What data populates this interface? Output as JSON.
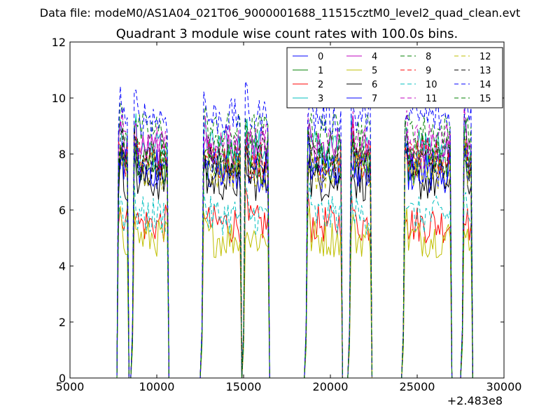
{
  "figure": {
    "suptitle": "Data file: modeM0/AS1A04_021T06_9000001688_11515cztM0_level2_quad_clean.evt"
  },
  "chart_data": {
    "type": "line",
    "title": "Quadrant 3 module wise count rates with 100.0s bins.",
    "xlabel": "",
    "ylabel": "",
    "x_offset_label": "+2.483e8",
    "xlim": [
      5000,
      30000
    ],
    "ylim": [
      0,
      12
    ],
    "xticks": [
      5000,
      10000,
      15000,
      20000,
      25000,
      30000
    ],
    "yticks": [
      0,
      2,
      4,
      6,
      8,
      10,
      12
    ],
    "grid": false,
    "legend_position": "top-right",
    "legend_ncol": 4,
    "active_segments": [
      [
        7800,
        8300
      ],
      [
        8600,
        10600
      ],
      [
        12600,
        14800
      ],
      [
        15000,
        16400
      ],
      [
        18600,
        20600
      ],
      [
        21100,
        22300
      ],
      [
        24200,
        26900
      ],
      [
        27600,
        28100
      ]
    ],
    "series": [
      {
        "name": "0",
        "color": "#0000ff",
        "dash": "solid",
        "level": 7.3
      },
      {
        "name": "1",
        "color": "#008000",
        "dash": "solid",
        "level": 7.6
      },
      {
        "name": "2",
        "color": "#ff0000",
        "dash": "solid",
        "level": 5.5
      },
      {
        "name": "3",
        "color": "#00bfbf",
        "dash": "solid",
        "level": 8.2
      },
      {
        "name": "4",
        "color": "#bf00bf",
        "dash": "solid",
        "level": 8.1
      },
      {
        "name": "5",
        "color": "#bfbf00",
        "dash": "solid",
        "level": 5.0
      },
      {
        "name": "6",
        "color": "#000000",
        "dash": "solid",
        "level": 7.0
      },
      {
        "name": "7",
        "color": "#0000ff",
        "dash": "solid",
        "level": 7.5
      },
      {
        "name": "8",
        "color": "#008000",
        "dash": "dashed",
        "level": 8.8
      },
      {
        "name": "9",
        "color": "#ff0000",
        "dash": "dashed",
        "level": 7.8
      },
      {
        "name": "10",
        "color": "#00bfbf",
        "dash": "dashed",
        "level": 5.8
      },
      {
        "name": "11",
        "color": "#bf00bf",
        "dash": "dashed",
        "level": 8.4
      },
      {
        "name": "12",
        "color": "#bfbf00",
        "dash": "dashed",
        "level": 7.4
      },
      {
        "name": "13",
        "color": "#000000",
        "dash": "dashed",
        "level": 7.7
      },
      {
        "name": "14",
        "color": "#0000ff",
        "dash": "dashed",
        "level": 9.3
      },
      {
        "name": "15",
        "color": "#008000",
        "dash": "dashed",
        "level": 8.0
      }
    ]
  }
}
